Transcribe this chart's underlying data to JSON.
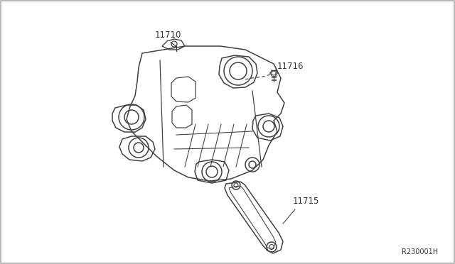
{
  "background_color": "#ffffff",
  "border_color": "#aaaaaa",
  "line_color": "#404040",
  "text_color": "#333333",
  "label_11710": "11710",
  "label_11715": "11715",
  "label_11716": "11716",
  "ref_code": "R230001H",
  "fig_width": 6.4,
  "fig_height": 3.72,
  "dpi": 100
}
